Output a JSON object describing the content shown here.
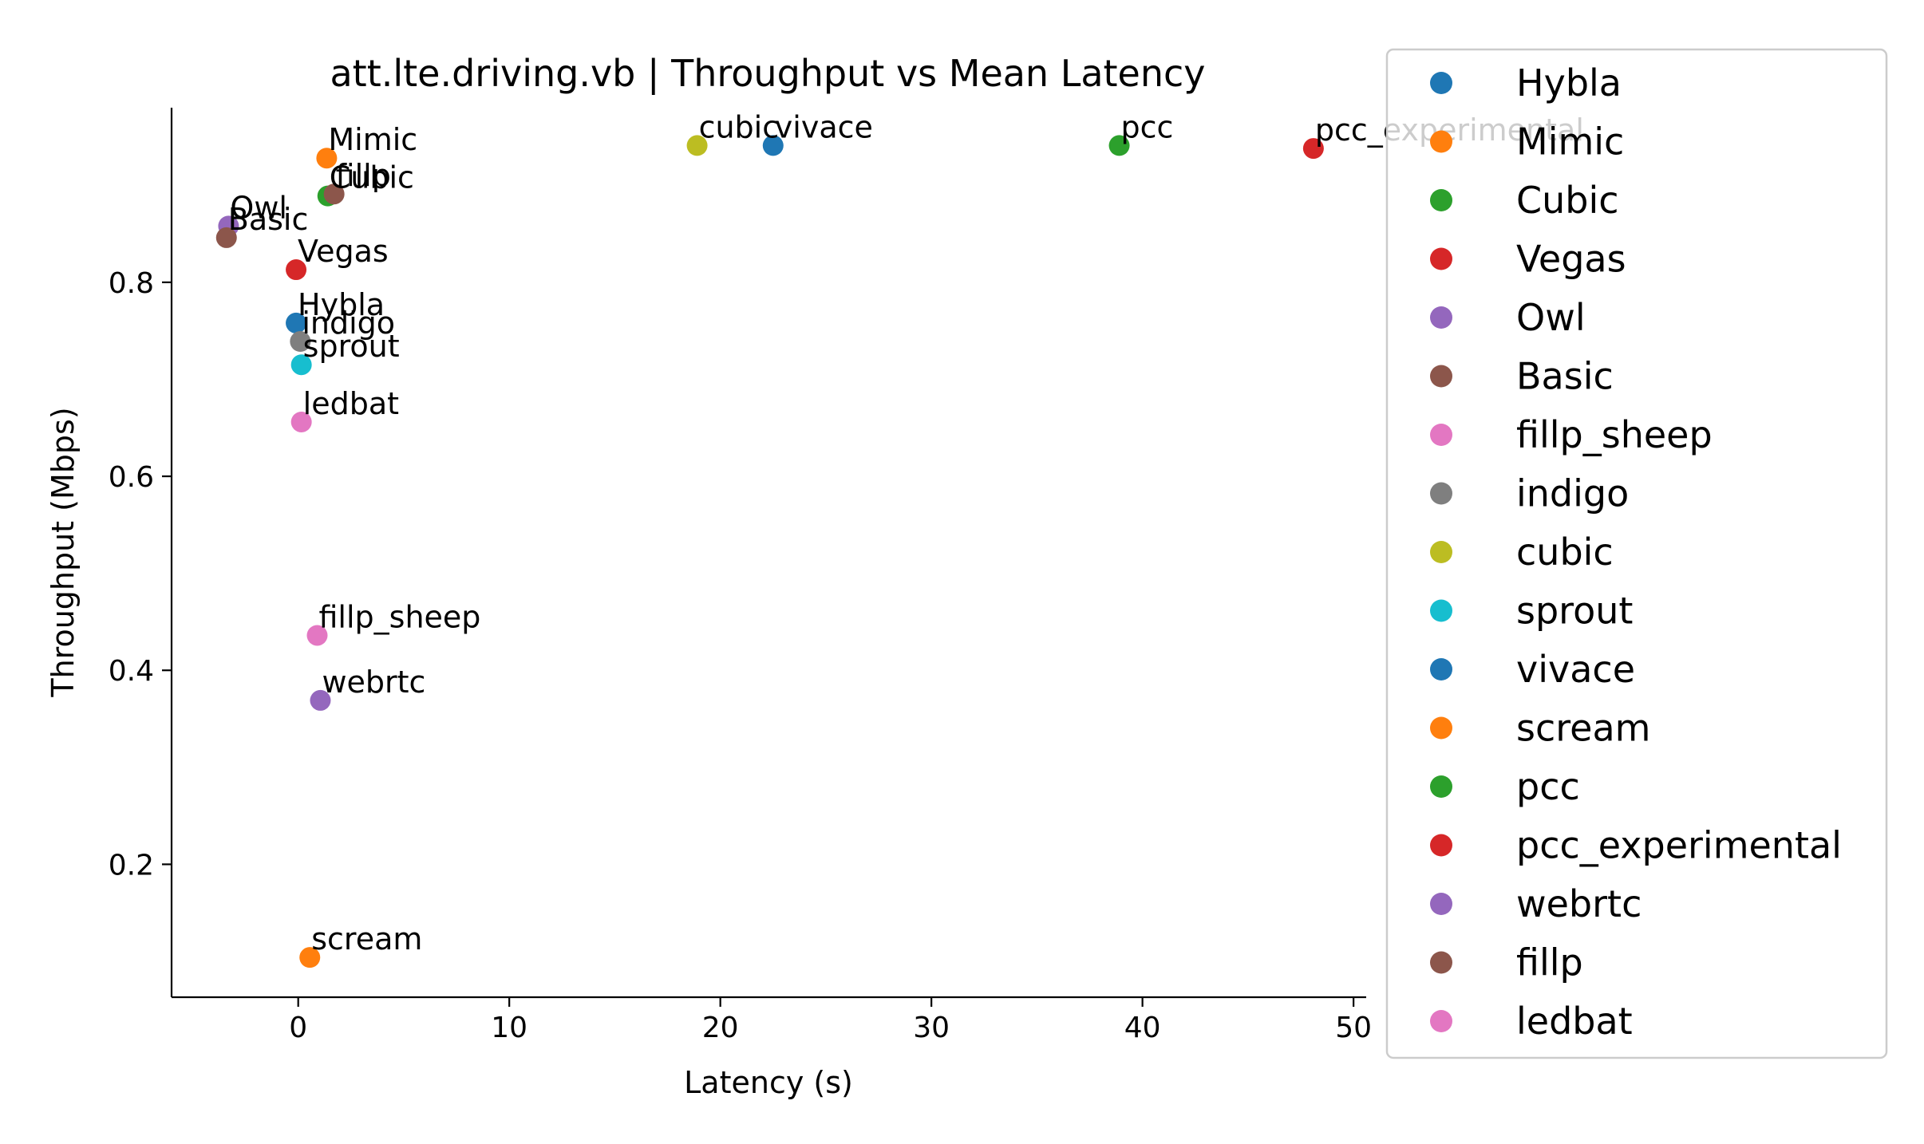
{
  "chart_data": {
    "type": "scatter",
    "title": "att.lte.driving.vb | Throughput vs Mean Latency",
    "xlabel": "Latency (s)",
    "ylabel": "Throughput (Mbps)",
    "xlim": [
      -6,
      50.6
    ],
    "ylim": [
      0.063,
      0.98
    ],
    "xticks": [
      0,
      10,
      20,
      30,
      40,
      50
    ],
    "yticks": [
      0.2,
      0.4,
      0.6,
      0.8
    ],
    "ytick_labels": [
      "0.2",
      "0.4",
      "0.6",
      "0.8"
    ],
    "grid": false,
    "legend_position": "upper-right (outside axes)",
    "series": [
      {
        "name": "Hybla",
        "color": "#1f77b4",
        "x": -0.1,
        "y": 0.758
      },
      {
        "name": "Mimic",
        "color": "#ff7f0e",
        "x": 1.35,
        "y": 0.928
      },
      {
        "name": "Cubic",
        "color": "#2ca02c",
        "x": 1.4,
        "y": 0.889
      },
      {
        "name": "Vegas",
        "color": "#d62728",
        "x": -0.1,
        "y": 0.813
      },
      {
        "name": "Owl",
        "color": "#9467bd",
        "x": -3.3,
        "y": 0.858
      },
      {
        "name": "Basic",
        "color": "#8c564b",
        "x": -3.4,
        "y": 0.846
      },
      {
        "name": "fillp_sheep",
        "color": "#e377c2",
        "x": 0.9,
        "y": 0.436
      },
      {
        "name": "indigo",
        "color": "#7f7f7f",
        "x": 0.1,
        "y": 0.739
      },
      {
        "name": "cubic",
        "color": "#bcbd22",
        "x": 18.9,
        "y": 0.941
      },
      {
        "name": "sprout",
        "color": "#17becf",
        "x": 0.15,
        "y": 0.715
      },
      {
        "name": "vivace",
        "color": "#1f77b4",
        "x": 22.5,
        "y": 0.941
      },
      {
        "name": "scream",
        "color": "#ff7f0e",
        "x": 0.55,
        "y": 0.104
      },
      {
        "name": "pcc",
        "color": "#2ca02c",
        "x": 38.9,
        "y": 0.941
      },
      {
        "name": "pcc_experimental",
        "color": "#d62728",
        "x": 48.1,
        "y": 0.938
      },
      {
        "name": "webrtc",
        "color": "#9467bd",
        "x": 1.05,
        "y": 0.369
      },
      {
        "name": "fillp",
        "color": "#8c564b",
        "x": 1.7,
        "y": 0.891
      },
      {
        "name": "ledbat",
        "color": "#e377c2",
        "x": 0.15,
        "y": 0.656
      }
    ]
  }
}
